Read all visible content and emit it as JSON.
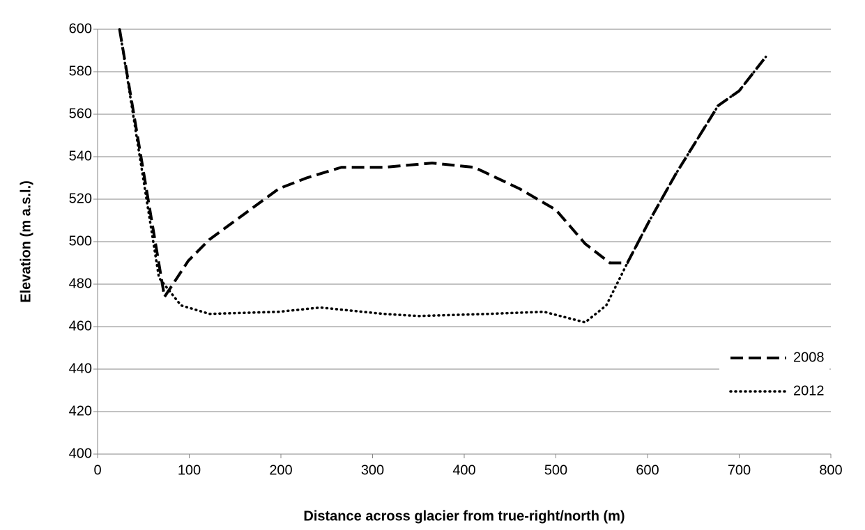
{
  "chart_data": {
    "type": "line",
    "xlabel": "Distance across glacier from true-right/north (m)",
    "ylabel": "Elevation (m a.s.l.)",
    "xlim": [
      0,
      800
    ],
    "xticks": [
      0,
      100,
      200,
      300,
      400,
      500,
      600,
      700,
      800
    ],
    "ylim": [
      400,
      600
    ],
    "yticks": [
      400,
      420,
      440,
      460,
      480,
      500,
      520,
      540,
      560,
      580,
      600
    ],
    "grid": true,
    "legend": "right",
    "series": [
      {
        "name": "2008",
        "color": "#000000",
        "style": "dashed",
        "x": [
          24,
          73,
          99,
          122,
          160,
          198,
          228,
          266,
          312,
          365,
          411,
          460,
          500,
          532,
          559,
          578,
          601,
          631,
          654,
          677,
          700,
          729
        ],
        "values": [
          600,
          474,
          491,
          501,
          513,
          525,
          530,
          535,
          535,
          537,
          535,
          525,
          515,
          499,
          490,
          490,
          509,
          532,
          548,
          564,
          571,
          587
        ]
      },
      {
        "name": "2012",
        "color": "#000000",
        "style": "dotted",
        "x": [
          24,
          67,
          91,
          122,
          198,
          243,
          312,
          350,
          426,
          487,
          532,
          555,
          570,
          578,
          601,
          631,
          654,
          677,
          700,
          729
        ],
        "values": [
          600,
          483,
          470,
          466,
          467,
          469,
          466,
          465,
          466,
          467,
          462,
          470,
          483,
          490,
          509,
          532,
          548,
          564,
          571,
          587
        ]
      }
    ]
  }
}
